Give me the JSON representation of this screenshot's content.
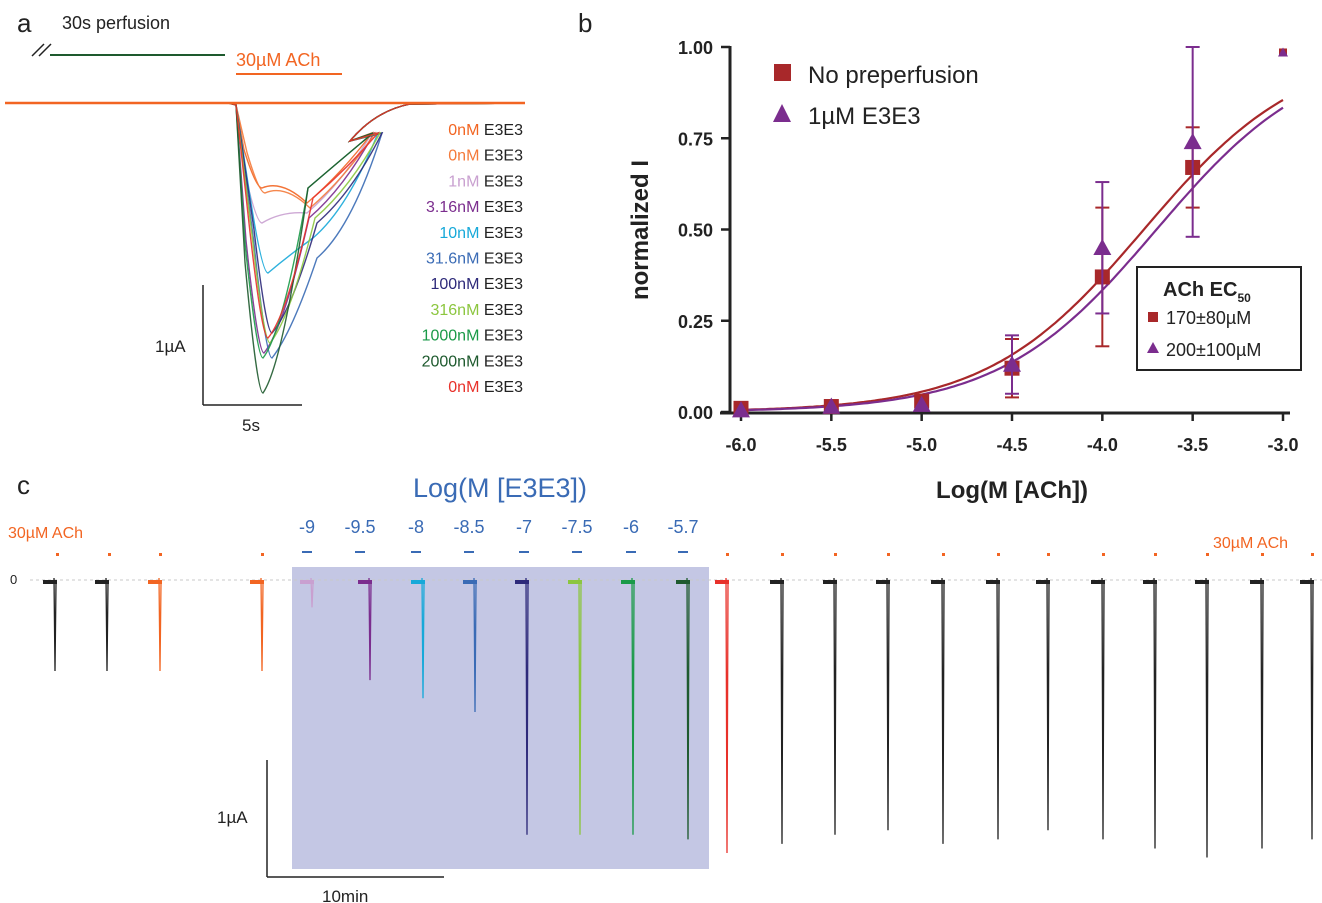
{
  "panel_a": {
    "letter": "a",
    "perfusion_label": "30s perfusion",
    "ach_label": "30µM ACh",
    "scale_y": "1µA",
    "scale_x": "5s",
    "legend": [
      {
        "conc": "0nM",
        "compound": "E3E3",
        "color": "#f26522"
      },
      {
        "conc": "0nM",
        "compound": "E3E3",
        "color": "#f47a3a"
      },
      {
        "conc": "1nM",
        "compound": "E3E3",
        "color": "#c9a0d0"
      },
      {
        "conc": "3.16nM",
        "compound": "E3E3",
        "color": "#7b2d8e"
      },
      {
        "conc": "10nM",
        "compound": "E3E3",
        "color": "#17a9d9"
      },
      {
        "conc": "31.6nM",
        "compound": "E3E3",
        "color": "#3a6bb5"
      },
      {
        "conc": "100nM",
        "compound": "E3E3",
        "color": "#2e2a7a"
      },
      {
        "conc": "316nM",
        "compound": "E3E3",
        "color": "#8cc63f"
      },
      {
        "conc": "1000nM",
        "compound": "E3E3",
        "color": "#1a9a48"
      },
      {
        "conc": "2000nM",
        "compound": "E3E3",
        "color": "#1e5a2e"
      },
      {
        "conc": "0nM",
        "compound": "E3E3",
        "color": "#e8312a"
      }
    ]
  },
  "panel_b": {
    "letter": "b",
    "legend_items": [
      "No preperfusion",
      "1µM E3E3"
    ],
    "ec50_title": "ACh EC",
    "ec50_sub": "50",
    "ec50_values": [
      "170±80µM",
      "200±100µM"
    ]
  },
  "panel_c": {
    "letter": "c",
    "title": "Log(M [E3E3])",
    "ach_left": "30µM ACh",
    "ach_right": "30µM ACh",
    "zero_label": "0",
    "conc_labels": [
      "-9",
      "-9.5",
      "-8",
      "-8.5",
      "-7",
      "-7.5",
      "-6",
      "-5.7"
    ],
    "scale_y": "1µA",
    "scale_x": "10min",
    "trace_depths_uA": [
      1.0,
      1.0,
      1.0,
      1.0,
      0.3,
      1.1,
      1.3,
      1.45,
      2.8,
      2.8,
      2.8,
      2.85,
      3.0,
      2.9,
      2.8,
      2.75,
      2.9,
      2.85,
      2.75,
      2.85,
      2.95,
      3.05,
      2.95,
      2.85,
      2.6,
      2.85
    ]
  },
  "chart_data": {
    "type": "scatter",
    "xlabel": "Log(M [ACh])",
    "ylabel": "normalized I",
    "xlim": [
      -6.0,
      -3.0
    ],
    "ylim": [
      0.0,
      1.0
    ],
    "xticks": [
      "-6.0",
      "-5.5",
      "-5.0",
      "-4.5",
      "-4.0",
      "-3.5",
      "-3.0"
    ],
    "yticks": [
      "0.00",
      "0.25",
      "0.50",
      "0.75",
      "1.00"
    ],
    "series": [
      {
        "name": "No preperfusion",
        "color": "#a8282a",
        "marker": "square",
        "x": [
          -6.0,
          -5.5,
          -5.0,
          -4.5,
          -4.0,
          -3.5,
          -3.0
        ],
        "y": [
          0.01,
          0.015,
          0.03,
          0.12,
          0.37,
          0.67,
          0.985
        ],
        "err": [
          0.005,
          0.005,
          0.01,
          0.08,
          0.19,
          0.11,
          0.0
        ],
        "ec50": -3.77
      },
      {
        "name": "1µM E3E3",
        "color": "#7b2d8e",
        "marker": "triangle",
        "x": [
          -6.0,
          -5.5,
          -5.0,
          -4.5,
          -4.0,
          -3.5,
          -3.0
        ],
        "y": [
          0.005,
          0.015,
          0.02,
          0.13,
          0.45,
          0.74,
          0.985
        ],
        "err": [
          0.005,
          0.005,
          0.01,
          0.08,
          0.18,
          0.26,
          0.0
        ],
        "ec50": -3.7
      }
    ]
  }
}
